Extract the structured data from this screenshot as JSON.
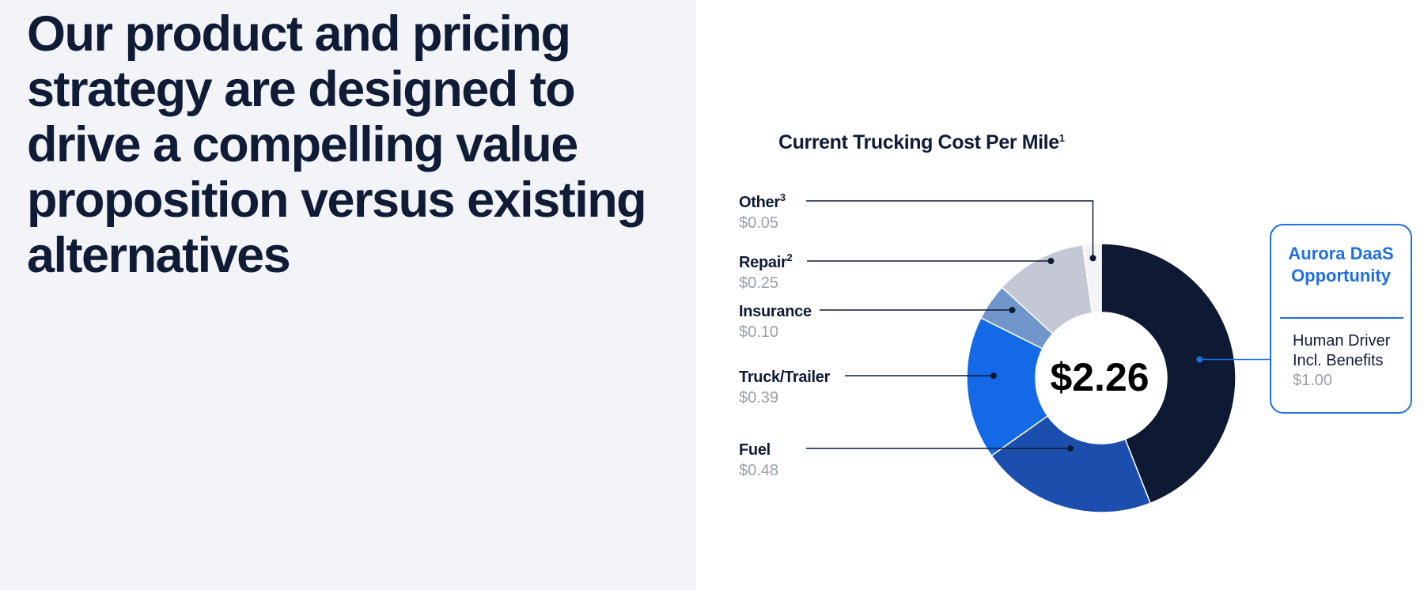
{
  "headline": "Our product and pricing strategy are designed to drive a compelling value proposition versus existing alternatives",
  "chart_data": {
    "type": "pie",
    "title": "Current Trucking Cost Per Mile",
    "title_superscript": "1",
    "center_label": "$2.26",
    "segments": [
      {
        "name": "Human Driver Incl. Benefits",
        "value": 1.0,
        "value_label": "$1.00",
        "color": "#0e1a33"
      },
      {
        "name": "Fuel",
        "value": 0.48,
        "value_label": "$0.48",
        "color": "#1c4fad"
      },
      {
        "name": "Truck/Trailer",
        "value": 0.39,
        "value_label": "$0.39",
        "color": "#1469e6"
      },
      {
        "name": "Insurance",
        "value": 0.1,
        "value_label": "$0.10",
        "color": "#7096cc"
      },
      {
        "name": "Repair",
        "superscript": "2",
        "value": 0.25,
        "value_label": "$0.25",
        "color": "#c3c8d4"
      },
      {
        "name": "Other",
        "superscript": "3",
        "value": 0.05,
        "value_label": "$0.05",
        "color": "#f3f4f6"
      }
    ],
    "callout": {
      "title_line1": "Aurora DaaS",
      "title_line2": "Opportunity",
      "text_line1": "Human Driver",
      "text_line2": "Incl. Benefits",
      "value": "$1.00",
      "accent_color": "#1f6fe3"
    }
  }
}
